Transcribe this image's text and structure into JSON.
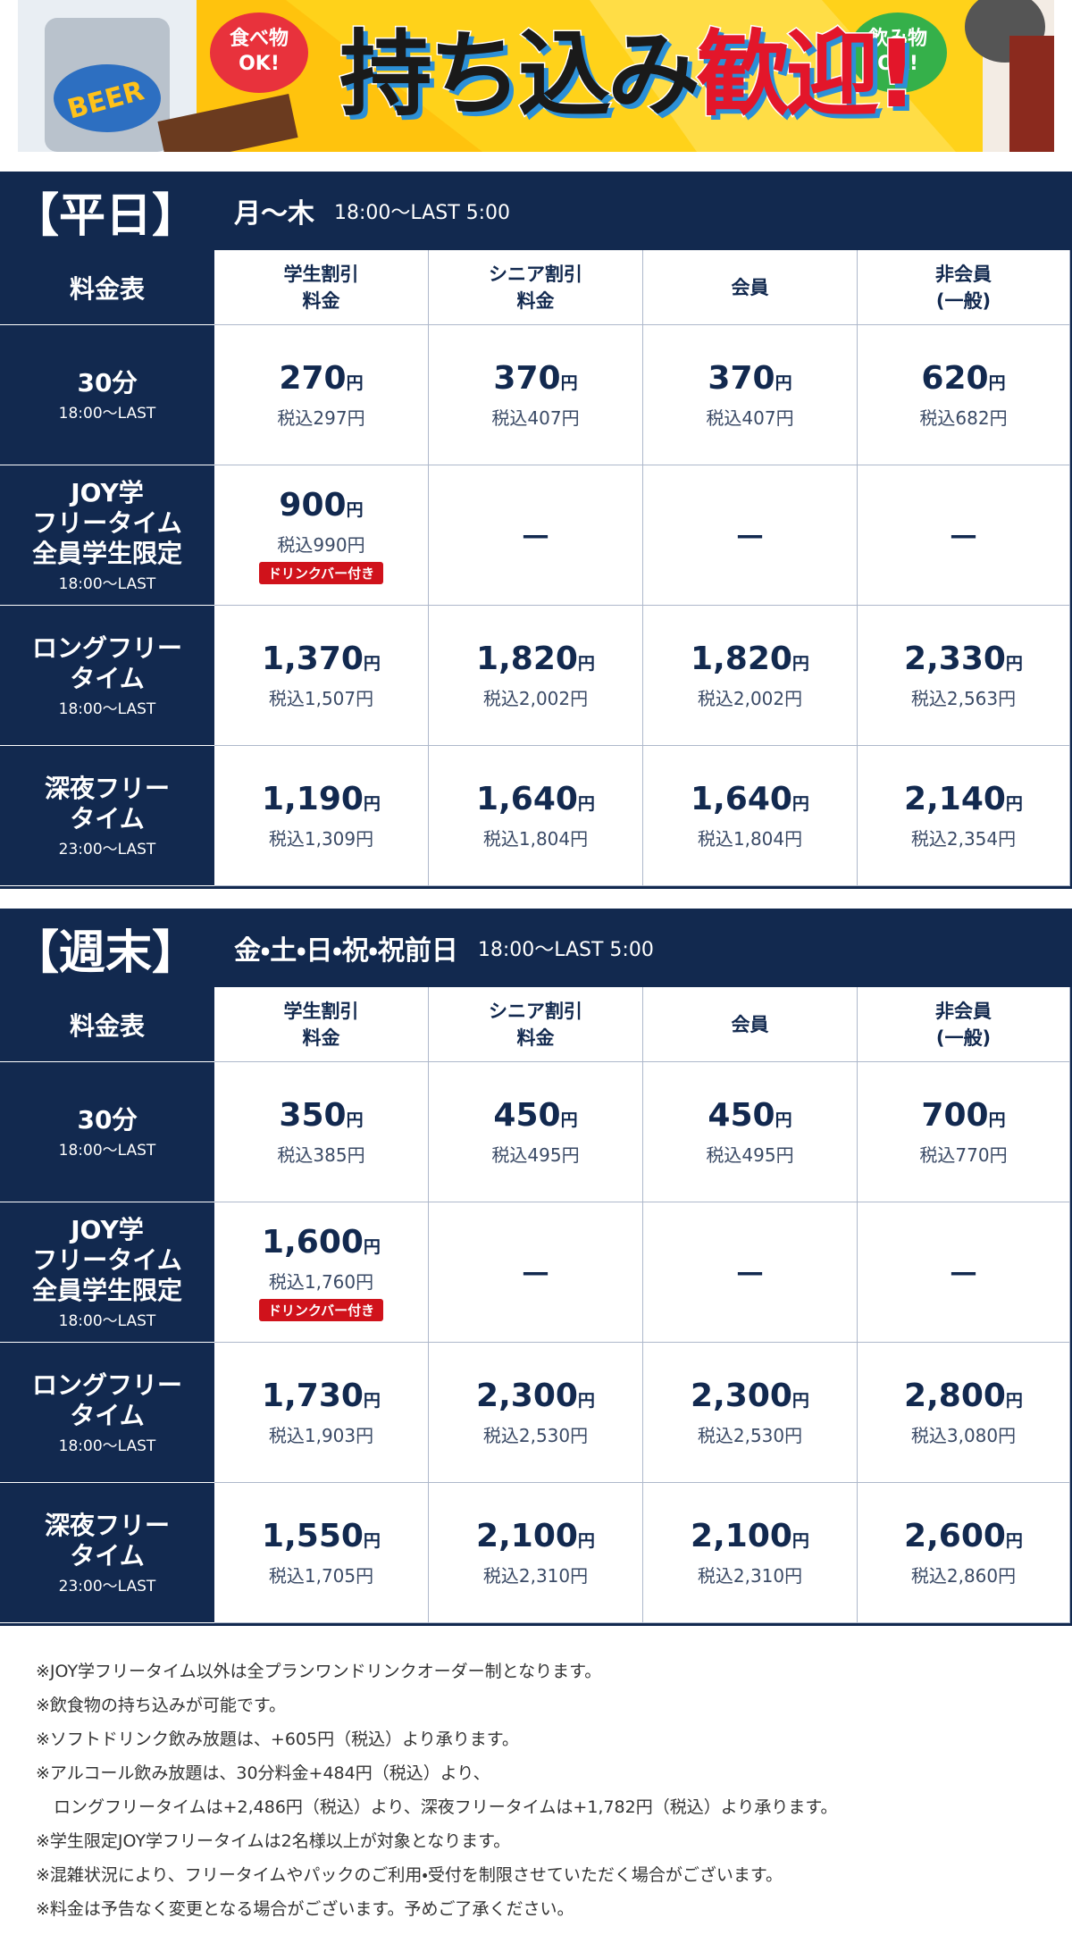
{
  "banner": {
    "food_bubble": [
      "食べ物",
      "OK!"
    ],
    "drink_bubble": [
      "飲み物",
      "OK!"
    ],
    "headline_black": "持ち込み",
    "headline_red": "歓迎!",
    "can_label": "BEER"
  },
  "unit": "円",
  "sections": [
    {
      "title": "【平日】",
      "days": "月～木",
      "hours": "18:00～LAST 5:00",
      "corner": "料金表",
      "columns": [
        [
          "学生割引",
          "料金"
        ],
        [
          "シニア割引",
          "料金"
        ],
        [
          "会員"
        ],
        [
          "非会員",
          "(一般)"
        ]
      ],
      "rows": [
        {
          "label": [
            "30分"
          ],
          "time": "18:00～LAST",
          "cells": [
            {
              "price": "270",
              "tax": "税込297円"
            },
            {
              "price": "370",
              "tax": "税込407円"
            },
            {
              "price": "370",
              "tax": "税込407円"
            },
            {
              "price": "620",
              "tax": "税込682円"
            }
          ]
        },
        {
          "label": [
            "JOY学",
            "フリータイム",
            "全員学生限定"
          ],
          "time": "18:00～LAST",
          "cells": [
            {
              "price": "900",
              "tax": "税込990円",
              "badge": "ドリンクバー付き"
            },
            {
              "dash": "－"
            },
            {
              "dash": "－"
            },
            {
              "dash": "－"
            }
          ]
        },
        {
          "label": [
            "ロングフリー",
            "タイム"
          ],
          "time": "18:00～LAST",
          "cells": [
            {
              "price": "1,370",
              "tax": "税込1,507円"
            },
            {
              "price": "1,820",
              "tax": "税込2,002円"
            },
            {
              "price": "1,820",
              "tax": "税込2,002円"
            },
            {
              "price": "2,330",
              "tax": "税込2,563円"
            }
          ]
        },
        {
          "label": [
            "深夜フリー",
            "タイム"
          ],
          "time": "23:00～LAST",
          "cells": [
            {
              "price": "1,190",
              "tax": "税込1,309円"
            },
            {
              "price": "1,640",
              "tax": "税込1,804円"
            },
            {
              "price": "1,640",
              "tax": "税込1,804円"
            },
            {
              "price": "2,140",
              "tax": "税込2,354円"
            }
          ]
        }
      ]
    },
    {
      "title": "【週末】",
      "days": "金・土・日・祝・祝前日",
      "hours": "18:00～LAST 5:00",
      "corner": "料金表",
      "columns": [
        [
          "学生割引",
          "料金"
        ],
        [
          "シニア割引",
          "料金"
        ],
        [
          "会員"
        ],
        [
          "非会員",
          "(一般)"
        ]
      ],
      "rows": [
        {
          "label": [
            "30分"
          ],
          "time": "18:00～LAST",
          "cells": [
            {
              "price": "350",
              "tax": "税込385円"
            },
            {
              "price": "450",
              "tax": "税込495円"
            },
            {
              "price": "450",
              "tax": "税込495円"
            },
            {
              "price": "700",
              "tax": "税込770円"
            }
          ]
        },
        {
          "label": [
            "JOY学",
            "フリータイム",
            "全員学生限定"
          ],
          "time": "18:00～LAST",
          "cells": [
            {
              "price": "1,600",
              "tax": "税込1,760円",
              "badge": "ドリンクバー付き"
            },
            {
              "dash": "－"
            },
            {
              "dash": "－"
            },
            {
              "dash": "－"
            }
          ]
        },
        {
          "label": [
            "ロングフリー",
            "タイム"
          ],
          "time": "18:00～LAST",
          "cells": [
            {
              "price": "1,730",
              "tax": "税込1,903円"
            },
            {
              "price": "2,300",
              "tax": "税込2,530円"
            },
            {
              "price": "2,300",
              "tax": "税込2,530円"
            },
            {
              "price": "2,800",
              "tax": "税込3,080円"
            }
          ]
        },
        {
          "label": [
            "深夜フリー",
            "タイム"
          ],
          "time": "23:00～LAST",
          "cells": [
            {
              "price": "1,550",
              "tax": "税込1,705円"
            },
            {
              "price": "2,100",
              "tax": "税込2,310円"
            },
            {
              "price": "2,100",
              "tax": "税込2,310円"
            },
            {
              "price": "2,600",
              "tax": "税込2,860円"
            }
          ]
        }
      ]
    }
  ],
  "notes": [
    "※JOY学フリータイム以外は全プランワンドリンクオーダー制となります。",
    "※飲食物の持ち込みが可能です。",
    "※ソフトドリンク飲み放題は、+605円（税込）より承ります。",
    "※アルコール飲み放題は、30分料金+484円（税込）より、",
    "ロングフリータイムは+2,486円（税込）より、深夜フリータイムは+1,782円（税込）より承ります。",
    "※学生限定JOY学フリータイムは2名様以上が対象となります。",
    "※混雑状況により、フリータイムやパックのご利用・受付を制限させていただく場合がございます。",
    "※料金は予告なく変更となる場合がございます。予めご了承ください。"
  ]
}
